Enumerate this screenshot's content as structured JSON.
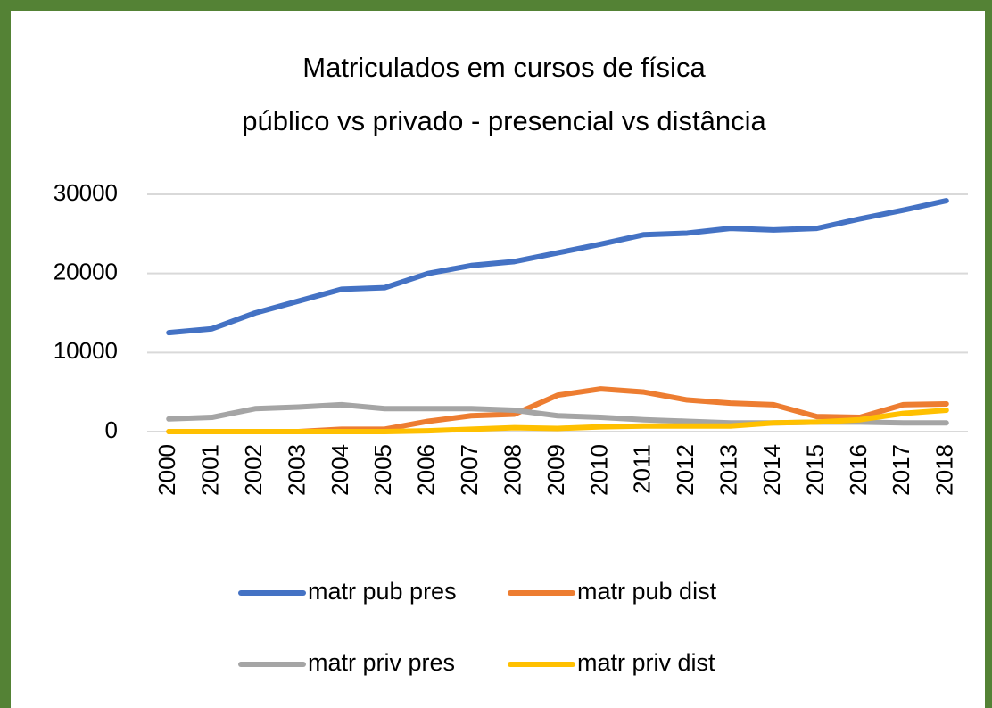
{
  "chart_data": {
    "type": "line",
    "title": [
      "Matriculados em cursos de física",
      "público vs privado - presencial vs distância"
    ],
    "categories": [
      "2000",
      "2001",
      "2002",
      "2003",
      "2004",
      "2005",
      "2006",
      "2007",
      "2008",
      "2009",
      "2010",
      "2011",
      "2012",
      "2013",
      "2014",
      "2015",
      "2016",
      "2017",
      "2018"
    ],
    "series": [
      {
        "name": "matr pub pres",
        "color": "#4472c4",
        "values": [
          12500,
          13000,
          15000,
          16500,
          18000,
          18200,
          20000,
          21000,
          21500,
          22600,
          23700,
          24900,
          25100,
          25700,
          25500,
          25700,
          26900,
          28000,
          29200
        ]
      },
      {
        "name": "matr pub dist",
        "color": "#ed7d31",
        "values": [
          0,
          0,
          0,
          0,
          300,
          300,
          1300,
          2000,
          2200,
          4600,
          5400,
          5000,
          4000,
          3600,
          3400,
          1900,
          1800,
          3400,
          3500
        ]
      },
      {
        "name": "matr priv pres",
        "color": "#a5a5a5",
        "values": [
          1600,
          1800,
          2900,
          3100,
          3400,
          2900,
          2900,
          2900,
          2700,
          2000,
          1800,
          1500,
          1300,
          1100,
          1100,
          1200,
          1200,
          1100,
          1100
        ]
      },
      {
        "name": "matr priv dist",
        "color": "#ffc000",
        "values": [
          0,
          0,
          0,
          0,
          0,
          0,
          100,
          300,
          500,
          400,
          600,
          700,
          700,
          700,
          1100,
          1200,
          1500,
          2300,
          2700
        ]
      }
    ],
    "ylim": [
      0,
      30000
    ],
    "yticks": [
      0,
      10000,
      20000,
      30000
    ],
    "grid": true,
    "legend": "bottom"
  }
}
